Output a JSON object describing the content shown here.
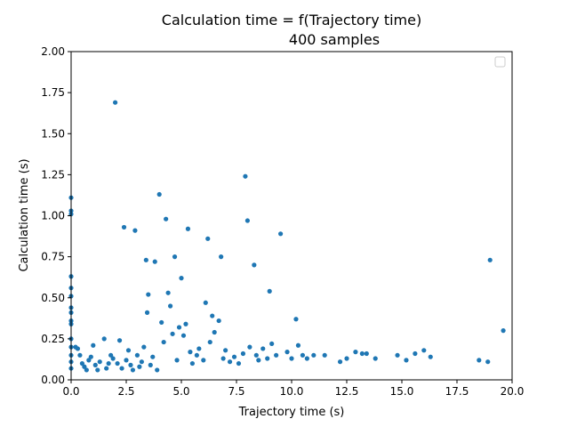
{
  "chart_data": {
    "type": "scatter",
    "title": "Calculation time = f(Trajectory time)",
    "subtitle": "400 samples",
    "xlabel": "Trajectory time (s)",
    "ylabel": "Calculation time (s)",
    "xlim": [
      0,
      20
    ],
    "ylim": [
      0,
      2
    ],
    "xticks": [
      "0.0",
      "2.5",
      "5.0",
      "7.5",
      "10.0",
      "12.5",
      "15.0",
      "17.5",
      "20.0"
    ],
    "yticks": [
      "0.00",
      "0.25",
      "0.50",
      "0.75",
      "1.00",
      "1.25",
      "1.50",
      "1.75",
      "2.00"
    ],
    "grid": false,
    "legend": "top-right (empty)",
    "marker_color": "#1f77b4",
    "points": [
      [
        0.0,
        1.11
      ],
      [
        0.0,
        1.03
      ],
      [
        0.0,
        1.01
      ],
      [
        0.0,
        0.63
      ],
      [
        0.0,
        0.56
      ],
      [
        0.0,
        0.51
      ],
      [
        0.0,
        0.44
      ],
      [
        0.0,
        0.41
      ],
      [
        0.0,
        0.36
      ],
      [
        0.0,
        0.34
      ],
      [
        0.0,
        0.25
      ],
      [
        0.0,
        0.2
      ],
      [
        0.0,
        0.15
      ],
      [
        0.0,
        0.11
      ],
      [
        0.0,
        0.07
      ],
      [
        0.2,
        0.2
      ],
      [
        0.3,
        0.19
      ],
      [
        0.4,
        0.15
      ],
      [
        0.5,
        0.1
      ],
      [
        0.6,
        0.08
      ],
      [
        0.7,
        0.06
      ],
      [
        0.8,
        0.12
      ],
      [
        0.9,
        0.14
      ],
      [
        1.0,
        0.21
      ],
      [
        1.1,
        0.09
      ],
      [
        1.2,
        0.06
      ],
      [
        1.3,
        0.11
      ],
      [
        1.5,
        0.25
      ],
      [
        1.6,
        0.07
      ],
      [
        1.7,
        0.1
      ],
      [
        1.8,
        0.15
      ],
      [
        1.9,
        0.13
      ],
      [
        2.0,
        1.69
      ],
      [
        2.1,
        0.1
      ],
      [
        2.2,
        0.24
      ],
      [
        2.3,
        0.07
      ],
      [
        2.4,
        0.93
      ],
      [
        2.5,
        0.12
      ],
      [
        2.6,
        0.18
      ],
      [
        2.7,
        0.09
      ],
      [
        2.8,
        0.06
      ],
      [
        2.9,
        0.91
      ],
      [
        3.0,
        0.15
      ],
      [
        3.1,
        0.08
      ],
      [
        3.2,
        0.11
      ],
      [
        3.3,
        0.2
      ],
      [
        3.4,
        0.73
      ],
      [
        3.45,
        0.41
      ],
      [
        3.5,
        0.52
      ],
      [
        3.6,
        0.09
      ],
      [
        3.7,
        0.14
      ],
      [
        3.8,
        0.72
      ],
      [
        3.9,
        0.06
      ],
      [
        4.0,
        1.13
      ],
      [
        4.1,
        0.35
      ],
      [
        4.2,
        0.23
      ],
      [
        4.3,
        0.98
      ],
      [
        4.4,
        0.53
      ],
      [
        4.5,
        0.45
      ],
      [
        4.6,
        0.28
      ],
      [
        4.7,
        0.75
      ],
      [
        4.8,
        0.12
      ],
      [
        4.9,
        0.32
      ],
      [
        5.0,
        0.62
      ],
      [
        5.1,
        0.27
      ],
      [
        5.2,
        0.34
      ],
      [
        5.3,
        0.92
      ],
      [
        5.4,
        0.17
      ],
      [
        5.5,
        0.1
      ],
      [
        5.7,
        0.15
      ],
      [
        5.8,
        0.19
      ],
      [
        6.0,
        0.12
      ],
      [
        6.1,
        0.47
      ],
      [
        6.2,
        0.86
      ],
      [
        6.3,
        0.23
      ],
      [
        6.4,
        0.39
      ],
      [
        6.5,
        0.29
      ],
      [
        6.7,
        0.36
      ],
      [
        6.8,
        0.75
      ],
      [
        6.9,
        0.13
      ],
      [
        7.0,
        0.18
      ],
      [
        7.2,
        0.11
      ],
      [
        7.4,
        0.14
      ],
      [
        7.6,
        0.1
      ],
      [
        7.8,
        0.16
      ],
      [
        7.9,
        1.24
      ],
      [
        8.0,
        0.97
      ],
      [
        8.1,
        0.2
      ],
      [
        8.3,
        0.7
      ],
      [
        8.4,
        0.15
      ],
      [
        8.5,
        0.12
      ],
      [
        8.7,
        0.19
      ],
      [
        8.9,
        0.13
      ],
      [
        9.0,
        0.54
      ],
      [
        9.1,
        0.22
      ],
      [
        9.3,
        0.15
      ],
      [
        9.5,
        0.89
      ],
      [
        9.8,
        0.17
      ],
      [
        10.0,
        0.13
      ],
      [
        10.2,
        0.37
      ],
      [
        10.3,
        0.21
      ],
      [
        10.5,
        0.15
      ],
      [
        10.7,
        0.13
      ],
      [
        11.0,
        0.15
      ],
      [
        11.5,
        0.15
      ],
      [
        12.2,
        0.11
      ],
      [
        12.5,
        0.13
      ],
      [
        12.9,
        0.17
      ],
      [
        13.2,
        0.16
      ],
      [
        13.4,
        0.16
      ],
      [
        13.8,
        0.13
      ],
      [
        14.8,
        0.15
      ],
      [
        15.2,
        0.12
      ],
      [
        15.6,
        0.16
      ],
      [
        16.0,
        0.18
      ],
      [
        16.3,
        0.14
      ],
      [
        18.5,
        0.12
      ],
      [
        18.9,
        0.11
      ],
      [
        19.0,
        0.73
      ],
      [
        19.6,
        0.3
      ]
    ]
  }
}
